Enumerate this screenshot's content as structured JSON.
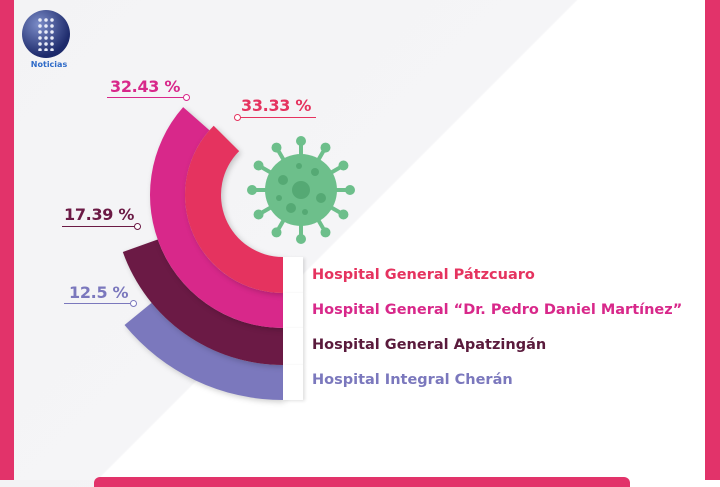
{
  "logo": {
    "text": "Noticias"
  },
  "chart_data": {
    "type": "radial-bar",
    "title": "",
    "categories": [
      "Hospital General Pátzcuaro",
      "Hospital General “Dr. Pedro Daniel Martínez”",
      "Hospital General Apatzingán",
      "Hospital Integral Cherán"
    ],
    "values": [
      33.33,
      32.43,
      17.39,
      12.5
    ],
    "labels": [
      "33.33 %",
      "32.43 %",
      "17.39 %",
      "12.5 %"
    ],
    "unit": "%",
    "colors": [
      "#e5335f",
      "#d8288a",
      "#6b1a45",
      "#7b78bd"
    ]
  }
}
